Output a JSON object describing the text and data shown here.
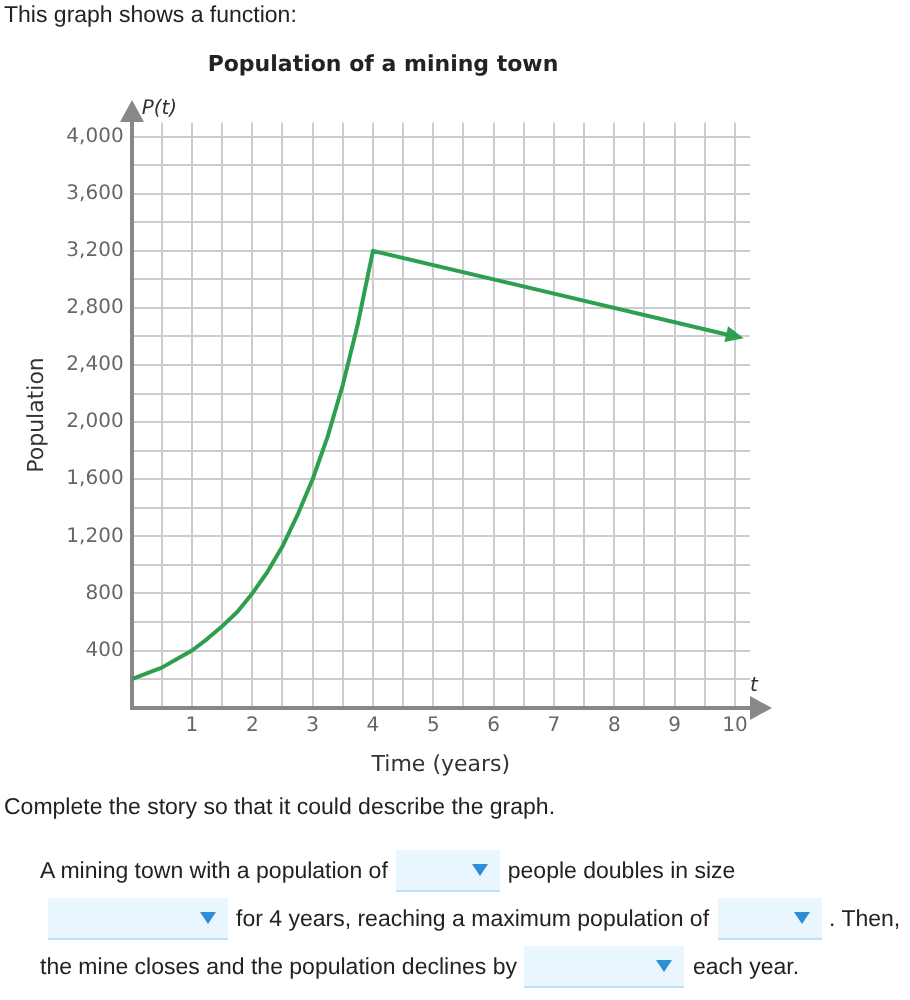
{
  "chart_data": {
    "type": "line",
    "title": "Population of a mining town",
    "xlabel": "Time (years)",
    "ylabel": "Population",
    "x": [
      0,
      0.25,
      0.5,
      0.75,
      1,
      1.25,
      1.5,
      1.75,
      2,
      2.25,
      2.5,
      2.75,
      3,
      3.25,
      3.5,
      3.75,
      4,
      10
    ],
    "series": [
      {
        "color": "#2e9e4f",
        "values": [
          200,
          240,
          280,
          340,
          400,
          480,
          570,
          670,
          800,
          950,
          1130,
          1350,
          1600,
          1900,
          2260,
          2690,
          3200,
          2600
        ]
      }
    ],
    "xlim": [
      0,
      10.25
    ],
    "xticks": [
      {
        "value": 0,
        "label": null
      },
      {
        "value": 0.5,
        "label": null
      },
      1,
      {
        "value": 1.5,
        "label": null
      },
      2,
      {
        "value": 2.5,
        "label": null
      },
      3,
      {
        "value": 3.5,
        "label": null
      },
      4,
      {
        "value": 4.5,
        "label": null
      },
      5,
      {
        "value": 5.5,
        "label": null
      },
      6,
      {
        "value": 6.5,
        "label": null
      },
      7,
      {
        "value": 7.5,
        "label": null
      },
      8,
      {
        "value": 8.5,
        "label": null
      },
      9,
      {
        "value": 9.5,
        "label": null
      },
      10
    ],
    "ylim": [
      0,
      4100
    ],
    "yticks": [
      {
        "value": 0,
        "label": null
      },
      {
        "value": 200,
        "label": null
      },
      400,
      {
        "value": 600,
        "label": null
      },
      800,
      {
        "value": 1000,
        "label": null
      },
      {
        "value": 1200,
        "label": "1,200"
      },
      {
        "value": 1400,
        "label": null
      },
      {
        "value": 1600,
        "label": "1,600"
      },
      {
        "value": 1800,
        "label": null
      },
      {
        "value": 2000,
        "label": "2,000"
      },
      {
        "value": 2200,
        "label": null
      },
      {
        "value": 2400,
        "label": "2,400"
      },
      {
        "value": 2600,
        "label": null
      },
      {
        "value": 2800,
        "label": "2,800"
      },
      {
        "value": 3000,
        "label": null
      },
      {
        "value": 3200,
        "label": "3,200"
      },
      {
        "value": 3400,
        "label": null
      },
      {
        "value": 3600,
        "label": "3,600"
      },
      {
        "value": 3800,
        "label": null
      },
      {
        "value": 4000,
        "label": "4,000"
      }
    ],
    "grid": true,
    "marker": "none",
    "line_style": "solid",
    "annotations": [
      "P(t)",
      "t",
      "This graph shows a function:",
      "Complete the story so that it could describe the graph.",
      "A mining town with a population of",
      "people doubles in size",
      "for 4 years, reaching a maximum population of",
      ". Then,",
      "the mine closes and the population declines by",
      "each year."
    ]
  }
}
